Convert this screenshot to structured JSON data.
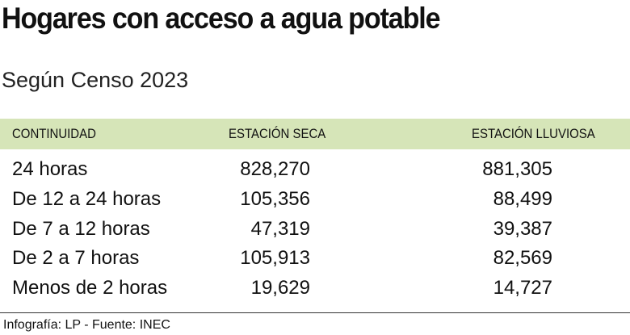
{
  "header": {
    "title": "Hogares con acceso a agua potable",
    "subtitle": "Según Censo 2023"
  },
  "table": {
    "columns": [
      "CONTINUIDAD",
      "ESTACIÓN SECA",
      "ESTACIÓN LLUVIOSA"
    ],
    "rows": [
      [
        "24 horas",
        "828,270",
        "881,305"
      ],
      [
        "De 12 a 24 horas",
        "105,356",
        "88,499"
      ],
      [
        "De 7 a 12 horas",
        "47,319",
        "39,387"
      ],
      [
        "De 2 a 7 horas",
        "105,913",
        "82,569"
      ],
      [
        "Menos de 2 horas",
        "19,629",
        "14,727"
      ]
    ]
  },
  "footer": {
    "source": "Infografía: LP - Fuente: INEC"
  }
}
